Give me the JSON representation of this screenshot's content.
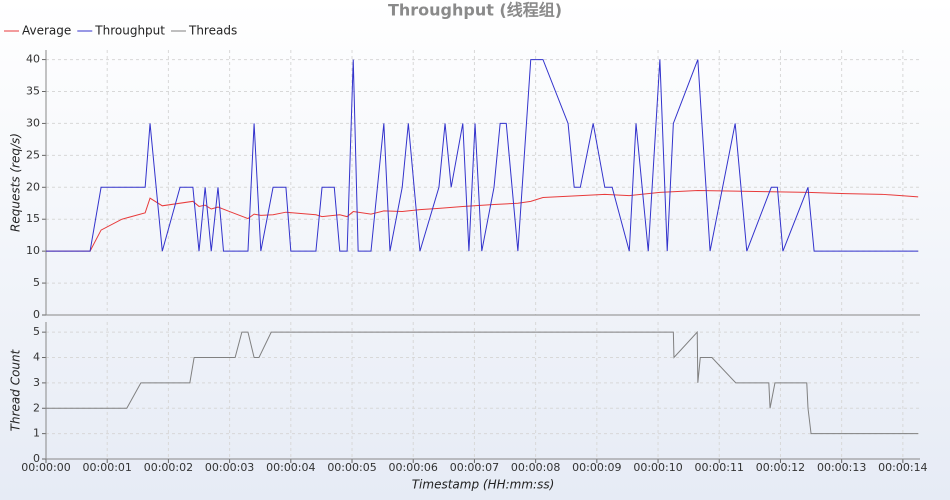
{
  "chart_data": [
    {
      "type": "line",
      "title": "Throughput (线程组)",
      "ylabel": "Requests (req/s)",
      "legend": "top-left",
      "grid": true,
      "xlim": [
        0,
        14.28
      ],
      "ylim": [
        0,
        41.5
      ],
      "yticks": [
        0,
        5,
        10,
        15,
        20,
        25,
        30,
        35,
        40
      ],
      "series": [
        {
          "name": "Average",
          "color": "#e83b3b",
          "x": [
            0,
            0.72,
            0.9,
            1.24,
            1.62,
            1.7,
            1.9,
            2.4,
            2.5,
            2.6,
            2.7,
            2.81,
            3.0,
            3.3,
            3.4,
            3.51,
            3.71,
            3.92,
            4.41,
            4.51,
            4.8,
            4.92,
            5.02,
            5.31,
            5.52,
            5.82,
            6.11,
            6.42,
            6.81,
            7.32,
            7.71,
            7.92,
            8.12,
            8.73,
            9.13,
            9.53,
            10.03,
            10.65,
            11.26,
            11.85,
            12.45,
            13.06,
            13.66,
            14.25
          ],
          "values": [
            10,
            10,
            13.3,
            15,
            16,
            18.3,
            17.1,
            17.8,
            17,
            17.2,
            16.6,
            16.9,
            16.2,
            15.1,
            15.8,
            15.6,
            15.7,
            16.1,
            15.7,
            15.4,
            15.7,
            15.4,
            16.2,
            15.8,
            16.3,
            16.2,
            16.5,
            16.7,
            17,
            17.3,
            17.5,
            17.8,
            18.4,
            18.7,
            18.9,
            18.7,
            19.2,
            19.5,
            19.4,
            19.3,
            19.2,
            19,
            18.9,
            18.5
          ]
        },
        {
          "name": "Throughput",
          "color": "#3333cc",
          "x": [
            0,
            0.72,
            0.9,
            1.62,
            1.7,
            1.9,
            2.19,
            2.4,
            2.5,
            2.6,
            2.7,
            2.81,
            2.9,
            3.3,
            3.4,
            3.51,
            3.71,
            3.92,
            4.0,
            4.41,
            4.51,
            4.71,
            4.8,
            4.92,
            5.02,
            5.1,
            5.31,
            5.52,
            5.62,
            5.82,
            5.92,
            6.11,
            6.42,
            6.52,
            6.62,
            6.81,
            6.91,
            7.01,
            7.12,
            7.32,
            7.42,
            7.52,
            7.71,
            7.92,
            8.12,
            8.53,
            8.63,
            8.73,
            8.94,
            9.13,
            9.25,
            9.53,
            9.64,
            9.84,
            10.03,
            10.15,
            10.25,
            10.65,
            10.85,
            11.26,
            11.45,
            11.85,
            11.95,
            12.04,
            12.45,
            12.55,
            14.25
          ],
          "values": [
            10,
            10,
            20,
            20,
            30,
            10,
            20,
            20,
            10,
            20,
            10,
            20,
            10,
            10,
            30,
            10,
            20,
            20,
            10,
            10,
            20,
            20,
            10,
            10,
            40,
            10,
            10,
            30,
            10,
            20,
            30,
            10,
            20,
            30,
            20,
            30,
            10,
            30,
            10,
            20,
            30,
            30,
            10,
            40,
            40,
            30,
            20,
            20,
            30,
            20,
            20,
            10,
            30,
            10,
            40,
            10,
            30,
            40,
            10,
            30,
            10,
            20,
            20,
            10,
            20,
            10,
            10
          ]
        }
      ]
    },
    {
      "type": "line",
      "ylabel": "Thread Count",
      "xlabel": "Timestamp (HH:mm:ss)",
      "grid": true,
      "xlim": [
        0,
        14.28
      ],
      "ylim": [
        0,
        5.4
      ],
      "yticks": [
        0,
        1,
        2,
        3,
        4,
        5
      ],
      "xticks": [
        {
          "value": 0,
          "label": "00:00:00"
        },
        {
          "value": 1,
          "label": "00:00:01"
        },
        {
          "value": 2,
          "label": "00:00:02"
        },
        {
          "value": 3,
          "label": "00:00:03"
        },
        {
          "value": 4,
          "label": "00:00:04"
        },
        {
          "value": 5,
          "label": "00:00:05"
        },
        {
          "value": 6,
          "label": "00:00:06"
        },
        {
          "value": 7,
          "label": "00:00:07"
        },
        {
          "value": 8,
          "label": "00:00:08"
        },
        {
          "value": 9,
          "label": "00:00:09"
        },
        {
          "value": 10,
          "label": "00:00:10"
        },
        {
          "value": 11,
          "label": "00:00:11"
        },
        {
          "value": 12,
          "label": "00:00:12"
        },
        {
          "value": 13,
          "label": "00:00:13"
        },
        {
          "value": 14,
          "label": "00:00:14"
        }
      ],
      "series": [
        {
          "name": "Threads",
          "color": "#808080",
          "x": [
            0,
            1.32,
            1.55,
            2.35,
            2.42,
            3.09,
            3.2,
            3.3,
            3.4,
            3.48,
            3.68,
            10.25,
            10.26,
            10.64,
            10.65,
            10.69,
            10.88,
            11.27,
            11.81,
            11.83,
            11.91,
            12.43,
            12.45,
            12.5,
            14.25
          ],
          "values": [
            2,
            2,
            3,
            3,
            4,
            4,
            5,
            5,
            4,
            4,
            5,
            5,
            4,
            5,
            3,
            4,
            4,
            3,
            3,
            2,
            3,
            3,
            2,
            1,
            1
          ]
        }
      ]
    }
  ]
}
